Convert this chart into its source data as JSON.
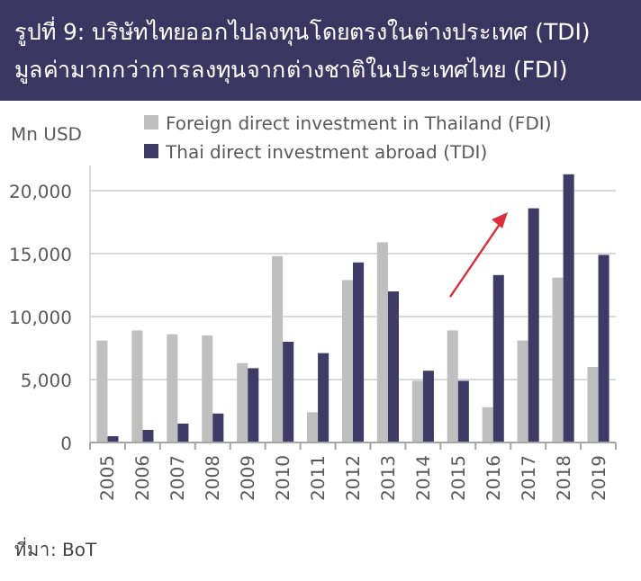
{
  "chart_data": {
    "type": "bar",
    "title": "รูปที่ 9: บริษัทไทยออกไปลงทุนโดยตรงในต่างประเทศ (TDI)\nมูลค่ามากกว่าการลงทุนจากต่างชาติในประเทศไทย (FDI)",
    "ylabel": "Mn USD",
    "categories": [
      "2005",
      "2006",
      "2007",
      "2008",
      "2009",
      "2010",
      "2011",
      "2012",
      "2013",
      "2014",
      "2015",
      "2016",
      "2017",
      "2018",
      "2019"
    ],
    "series": [
      {
        "name": "Foreign direct investment in Thailand (FDI)",
        "color": "#bfbfbf",
        "values": [
          8100,
          8900,
          8600,
          8500,
          6300,
          14800,
          2400,
          12900,
          15900,
          4900,
          8900,
          2800,
          8100,
          13100,
          6000
        ]
      },
      {
        "name": "Thai direct investment abroad (TDI)",
        "color": "#3f3a66",
        "values": [
          500,
          1000,
          1500,
          2300,
          5900,
          8000,
          7100,
          14300,
          12000,
          5700,
          4900,
          13300,
          18600,
          21300,
          14900
        ]
      }
    ],
    "ylim": [
      0,
      22000
    ],
    "yticks": [
      {
        "value": 0,
        "label": "0"
      },
      {
        "value": 5000,
        "label": "5,000"
      },
      {
        "value": 10000,
        "label": "10,000"
      },
      {
        "value": 15000,
        "label": "15,000"
      },
      {
        "value": 20000,
        "label": "20,000"
      }
    ],
    "grid": "y",
    "legend": "top left",
    "annotations": [
      "ที่มา: BoT"
    ]
  }
}
